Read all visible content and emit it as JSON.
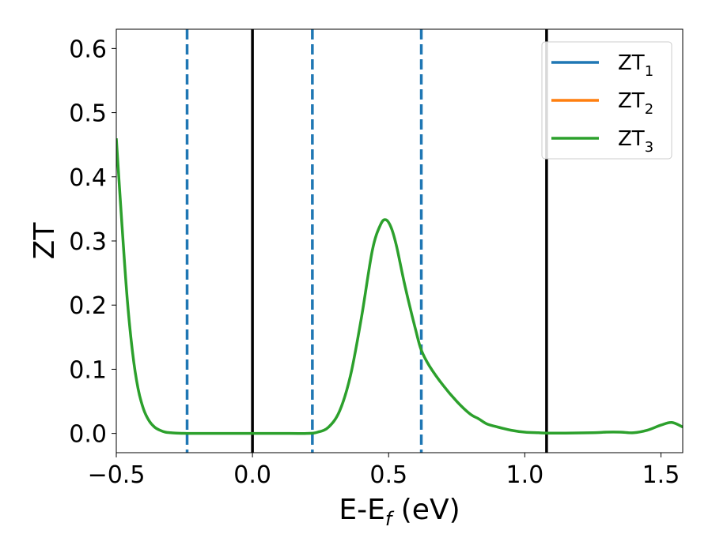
{
  "chart_data": {
    "type": "line",
    "xlabel": "E-E_f (eV)",
    "ylabel": "ZT",
    "xlim": [
      -0.5,
      1.58
    ],
    "ylim": [
      -0.03,
      0.63
    ],
    "xticks": [
      -0.5,
      0.0,
      0.5,
      1.0,
      1.5
    ],
    "xtick_labels": [
      "−0.5",
      "0.0",
      "0.5",
      "1.0",
      "1.5"
    ],
    "yticks": [
      0.0,
      0.1,
      0.2,
      0.3,
      0.4,
      0.5,
      0.6
    ],
    "ytick_labels": [
      "0.0",
      "0.1",
      "0.2",
      "0.3",
      "0.4",
      "0.5",
      "0.6"
    ],
    "legend": {
      "position": "top-right",
      "entries": [
        {
          "label": "ZT",
          "subscript": "1",
          "color": "#1f77b4"
        },
        {
          "label": "ZT",
          "subscript": "2",
          "color": "#ff7f0e"
        },
        {
          "label": "ZT",
          "subscript": "3",
          "color": "#2ca02c"
        }
      ]
    },
    "xlabel_parts": {
      "main": "E-E",
      "subscript": "f",
      "tail": " (eV)"
    },
    "vertical_lines": [
      {
        "x": -0.24,
        "style": "dashed",
        "color": "#1f77b4"
      },
      {
        "x": 0.0,
        "style": "solid",
        "color": "#000000"
      },
      {
        "x": 0.22,
        "style": "dashed",
        "color": "#1f77b4"
      },
      {
        "x": 0.62,
        "style": "dashed",
        "color": "#1f77b4"
      },
      {
        "x": 1.08,
        "style": "solid",
        "color": "#000000"
      }
    ],
    "series": [
      {
        "name": "ZT_1",
        "color": "#1f77b4",
        "draw": false
      },
      {
        "name": "ZT_2",
        "color": "#ff7f0e",
        "draw": false
      },
      {
        "name": "ZT_3",
        "color": "#2ca02c",
        "draw": true
      }
    ],
    "x": [
      -0.5,
      -0.48,
      -0.46,
      -0.44,
      -0.42,
      -0.4,
      -0.38,
      -0.36,
      -0.34,
      -0.32,
      -0.3,
      -0.28,
      -0.26,
      -0.24,
      -0.2,
      -0.1,
      0.0,
      0.1,
      0.2,
      0.24,
      0.28,
      0.32,
      0.36,
      0.4,
      0.44,
      0.47,
      0.49,
      0.51,
      0.53,
      0.56,
      0.6,
      0.62,
      0.65,
      0.7,
      0.75,
      0.8,
      0.83,
      0.86,
      0.9,
      0.95,
      1.0,
      1.05,
      1.08,
      1.15,
      1.25,
      1.3,
      1.35,
      1.4,
      1.45,
      1.5,
      1.54,
      1.58
    ],
    "values": [
      0.46,
      0.33,
      0.21,
      0.125,
      0.07,
      0.038,
      0.02,
      0.01,
      0.005,
      0.002,
      0.001,
      0.0005,
      0.0002,
      0.0,
      0.0,
      0.0,
      0.0,
      0.0,
      0.0,
      0.002,
      0.01,
      0.035,
      0.09,
      0.18,
      0.285,
      0.325,
      0.333,
      0.32,
      0.29,
      0.23,
      0.16,
      0.13,
      0.105,
      0.075,
      0.05,
      0.03,
      0.023,
      0.015,
      0.01,
      0.005,
      0.002,
      0.001,
      0.0005,
      0.0005,
      0.001,
      0.002,
      0.002,
      0.001,
      0.005,
      0.013,
      0.017,
      0.01
    ]
  }
}
